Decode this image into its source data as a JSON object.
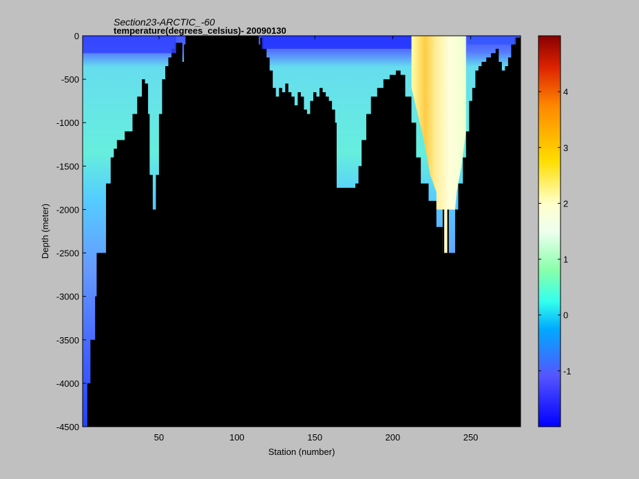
{
  "title_line1": "Section23-ARCTIC_-60",
  "title_line2": "temperature(degrees_celsius)- 20090130",
  "chart_data": {
    "type": "heatmap",
    "title": "Section23-ARCTIC_-60",
    "subtitle": "temperature(degrees_celsius)- 20090130",
    "xlabel": "Station (number)",
    "ylabel": "Depth (meter)",
    "xlim": [
      1,
      282
    ],
    "ylim": [
      -4500,
      0
    ],
    "xticks": [
      50,
      100,
      150,
      200,
      250
    ],
    "yticks": [
      0,
      -500,
      -1000,
      -1500,
      -2000,
      -2500,
      -3000,
      -3500,
      -4000,
      -4500
    ],
    "colorbar": {
      "range": [
        -2,
        5
      ],
      "ticks": [
        -1,
        0,
        1,
        2,
        3,
        4
      ],
      "colormap": "jet"
    },
    "no_data_color": "#000000",
    "background_color": "#c0c0c0",
    "bottom_profile": {
      "x": [
        1,
        4,
        6,
        9,
        10,
        14,
        16,
        19,
        21,
        23,
        25,
        28,
        33,
        36,
        39,
        41,
        43,
        44,
        46,
        48,
        50,
        52,
        54,
        56,
        58,
        60,
        61,
        65,
        66,
        115,
        117,
        119,
        121,
        123,
        125,
        127,
        129,
        131,
        133,
        135,
        137,
        139,
        141,
        143,
        145,
        147,
        149,
        151,
        153,
        155,
        157,
        159,
        161,
        163,
        164,
        168,
        172,
        176,
        178,
        180,
        183,
        186,
        190,
        194,
        198,
        202,
        205,
        208,
        212,
        215,
        218,
        223,
        228,
        234,
        236,
        240,
        242,
        245,
        247,
        249,
        251,
        253,
        255,
        257,
        260,
        263,
        266,
        268,
        270,
        272,
        274,
        276,
        278,
        282
      ],
      "depth": [
        -4500,
        -4000,
        -3500,
        -3000,
        -2500,
        -2500,
        -1700,
        -1400,
        -1300,
        -1200,
        -1200,
        -1100,
        -900,
        -700,
        -500,
        -550,
        -900,
        -1600,
        -2000,
        -1600,
        -900,
        -500,
        -350,
        -250,
        -150,
        -80,
        -80,
        -300,
        -100,
        -20,
        -150,
        -250,
        -400,
        -600,
        -700,
        -600,
        -650,
        -550,
        -650,
        -700,
        -800,
        -650,
        -700,
        -850,
        -900,
        -750,
        -650,
        -700,
        -600,
        -650,
        -700,
        -750,
        -850,
        -1000,
        -1750,
        -1750,
        -1750,
        -1700,
        -1500,
        -1200,
        -900,
        -700,
        -600,
        -500,
        -450,
        -400,
        -450,
        -700,
        -1000,
        -1400,
        -1700,
        -1900,
        -2200,
        -2500,
        -2500,
        -2000,
        -1700,
        -1400,
        -1100,
        -750,
        -600,
        -400,
        -350,
        -300,
        -250,
        -200,
        -150,
        -300,
        -400,
        -350,
        -250,
        -100,
        -20,
        0
      ]
    },
    "warm_core": {
      "x": [
        212,
        247
      ],
      "value": 2.0
    }
  }
}
